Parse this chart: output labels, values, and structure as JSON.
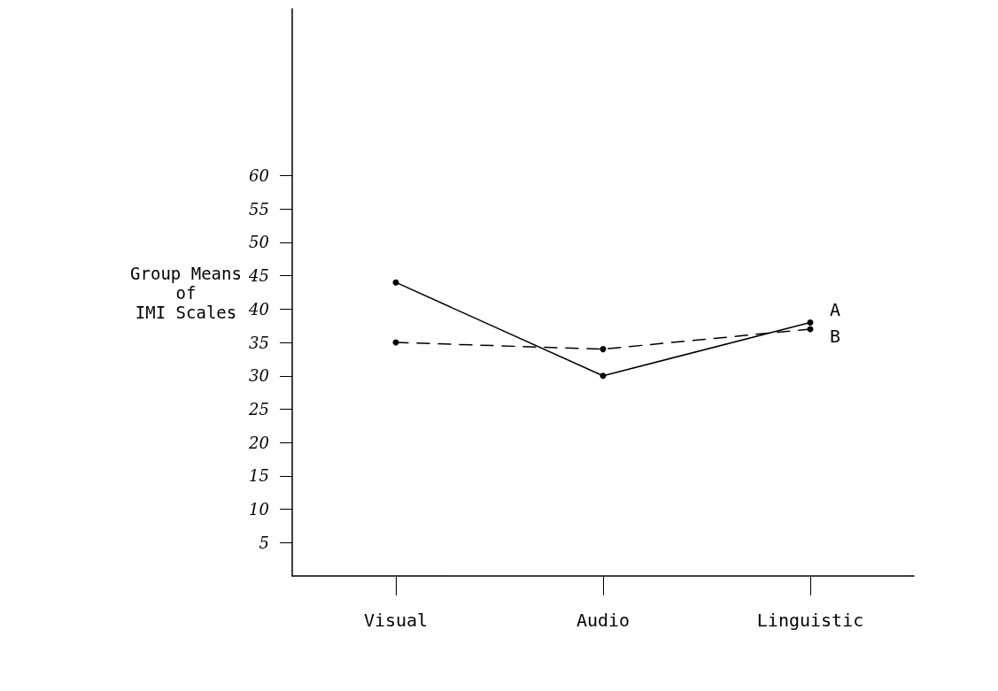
{
  "chart_data": {
    "type": "line",
    "ylabel": "Group Means\nof\nIMI Scales",
    "categories": [
      "Visual",
      "Audio",
      "Linguistic"
    ],
    "series": [
      {
        "name": "A",
        "color": "#000000",
        "values": [
          44,
          30,
          38
        ],
        "line_style": "solid"
      },
      {
        "name": "B",
        "color": "#000000",
        "values": [
          35,
          34,
          37
        ],
        "line_style": "dashed"
      }
    ],
    "ylim": [
      0,
      85
    ],
    "yticks": [
      5,
      10,
      15,
      20,
      25,
      30,
      35,
      40,
      45,
      50,
      55,
      60
    ],
    "marker": "circle",
    "grid": false,
    "legend": false
  }
}
